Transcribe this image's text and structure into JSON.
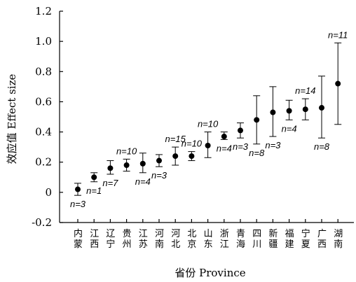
{
  "chart_data": {
    "type": "scatter",
    "xlabel": "省份 Province",
    "ylabel": "效应值 Effect size",
    "ylim": [
      -0.2,
      1.2
    ],
    "yticks": [
      "-0.2",
      "0",
      "0.2",
      "0.4",
      "0.6",
      "0.8",
      "1.0",
      "1.2"
    ],
    "yticks_values": [
      -0.2,
      0,
      0.2,
      0.4,
      0.6,
      0.8,
      1.0,
      1.2
    ],
    "grid": false,
    "categories": [
      "内蒙",
      "江西",
      "辽宁",
      "贵州",
      "江苏",
      "河南",
      "河北",
      "北京",
      "山东",
      "浙江",
      "青海",
      "四川",
      "新疆",
      "福建",
      "宁夏",
      "广西",
      "湖南"
    ],
    "values": [
      0.02,
      0.1,
      0.16,
      0.18,
      0.19,
      0.21,
      0.24,
      0.24,
      0.31,
      0.37,
      0.41,
      0.48,
      0.53,
      0.54,
      0.55,
      0.56,
      0.72
    ],
    "error_low": [
      -0.02,
      0.07,
      0.12,
      0.14,
      0.13,
      0.17,
      0.18,
      0.21,
      0.23,
      0.35,
      0.36,
      0.32,
      0.37,
      0.48,
      0.48,
      0.36,
      0.45
    ],
    "error_high": [
      0.06,
      0.13,
      0.21,
      0.22,
      0.26,
      0.25,
      0.3,
      0.27,
      0.4,
      0.4,
      0.46,
      0.64,
      0.7,
      0.61,
      0.62,
      0.77,
      0.99
    ],
    "n_labels": [
      "n=3",
      "n=1",
      "n=7",
      "n=10",
      "n=4",
      "n=3",
      "n=15",
      "n=10",
      "n=10",
      "n=4",
      "n=3",
      "n=8",
      "n=3",
      "n=4",
      "n=14",
      "n=8",
      "n=11"
    ],
    "n_label_position": [
      "below",
      "below",
      "below",
      "above",
      "below",
      "below",
      "above",
      "above",
      "above",
      "below",
      "below",
      "below",
      "below",
      "below",
      "above",
      "below",
      "above"
    ]
  }
}
